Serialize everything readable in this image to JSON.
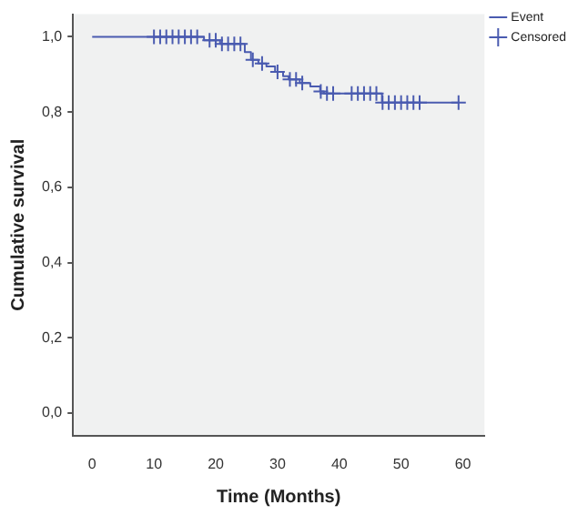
{
  "chart_data": {
    "type": "step",
    "xlabel": "Time (Months)",
    "ylabel": "Cumulative survival",
    "xlim": [
      -3.1,
      63.5
    ],
    "ylim": [
      -0.06,
      1.06
    ],
    "xticks": [
      0,
      10,
      20,
      30,
      40,
      50,
      60
    ],
    "yticks": [
      {
        "value": 0,
        "label": "0,0"
      },
      {
        "value": 0.2,
        "label": "0,2"
      },
      {
        "value": 0.4,
        "label": "0,4"
      },
      {
        "value": 0.6,
        "label": "0,6"
      },
      {
        "value": 0.8,
        "label": "0,8"
      },
      {
        "value": 1,
        "label": "1,0"
      }
    ],
    "grid": false,
    "legend": "top right",
    "series": [
      {
        "name": "Event",
        "color": "#4a5bb0",
        "marker": "none",
        "x": [
          0,
          18.1,
          20.7,
          24.7,
          25.7,
          26.9,
          28.2,
          29.6,
          30.9,
          31.8,
          33.6,
          35.3,
          36.9,
          37.5,
          46.9,
          59.3
        ],
        "values": [
          1,
          0.991,
          0.981,
          0.959,
          0.939,
          0.929,
          0.921,
          0.907,
          0.895,
          0.887,
          0.877,
          0.868,
          0.855,
          0.849,
          0.825,
          0.825
        ]
      },
      {
        "name": "Censored",
        "type": "scatter",
        "color": "#4a5bb0",
        "marker": "cross",
        "x": [
          10,
          11,
          12,
          13,
          14,
          15,
          16,
          17,
          19,
          20,
          21,
          22,
          23,
          24,
          26,
          27.5,
          30,
          32,
          33,
          34,
          37,
          38,
          39,
          42,
          43,
          44,
          45,
          46,
          47,
          48,
          49,
          50,
          51,
          52,
          53,
          59.3
        ],
        "values": [
          1,
          1,
          1,
          1,
          1,
          1,
          1,
          1,
          0.991,
          0.991,
          0.981,
          0.981,
          0.981,
          0.981,
          0.939,
          0.929,
          0.907,
          0.887,
          0.887,
          0.877,
          0.855,
          0.849,
          0.849,
          0.849,
          0.849,
          0.849,
          0.849,
          0.849,
          0.825,
          0.825,
          0.825,
          0.825,
          0.825,
          0.825,
          0.825,
          0.825
        ]
      }
    ]
  }
}
